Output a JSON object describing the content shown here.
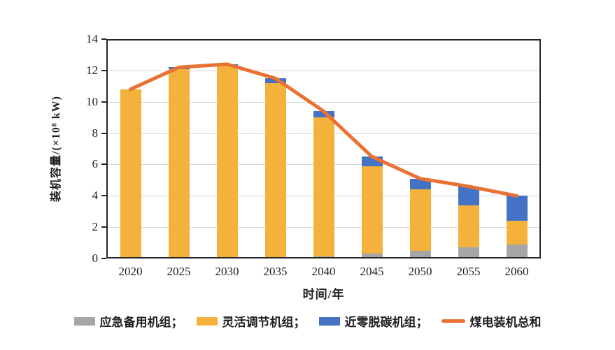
{
  "chart_data": {
    "type": "bar",
    "subtype": "stacked-bars-with-total-line",
    "title": "",
    "xlabel": "时间/年",
    "ylabel": "装机容量/(×10⁸ kW)",
    "categories": [
      "2020",
      "2025",
      "2030",
      "2035",
      "2040",
      "2045",
      "2050",
      "2055",
      "2060"
    ],
    "series": [
      {
        "name": "应急备用机组",
        "type": "bar",
        "color": "#A6A6A6",
        "values": [
          0,
          0,
          0,
          0,
          0.15,
          0.3,
          0.5,
          0.7,
          0.9
        ]
      },
      {
        "name": "灵活调节机组",
        "type": "bar",
        "color": "#F4B23C",
        "values": [
          10.8,
          12.1,
          12.3,
          11.2,
          8.85,
          5.6,
          3.9,
          2.7,
          1.5
        ]
      },
      {
        "name": "近零脱碳机组",
        "type": "bar",
        "color": "#4472C4",
        "values": [
          0,
          0.1,
          0.1,
          0.3,
          0.4,
          0.6,
          0.7,
          1.2,
          1.6
        ]
      },
      {
        "name": "煤电装机总和",
        "type": "line",
        "color": "#E97132",
        "values": [
          10.8,
          12.2,
          12.4,
          11.5,
          9.4,
          6.5,
          5.1,
          4.6,
          4.0
        ]
      }
    ],
    "stacked": true,
    "ylim": [
      0,
      14
    ],
    "y_ticks": [
      0,
      2,
      4,
      6,
      8,
      10,
      12,
      14
    ],
    "grid": true,
    "legend_position": "bottom"
  },
  "legend": {
    "items": [
      {
        "label": "应急备用机组；",
        "color": "#A6A6A6",
        "swatch": "rect"
      },
      {
        "label": "灵活调节机组；",
        "color": "#F4B23C",
        "swatch": "rect"
      },
      {
        "label": "近零脱碳机组；",
        "color": "#4472C4",
        "swatch": "rect"
      },
      {
        "label": "煤电装机总和",
        "color": "#E97132",
        "swatch": "line"
      }
    ]
  },
  "colors": {
    "frame": "#262626",
    "grid": "#D9D9D9",
    "text": "#1F1F1F",
    "background": "#FFFFFF"
  }
}
